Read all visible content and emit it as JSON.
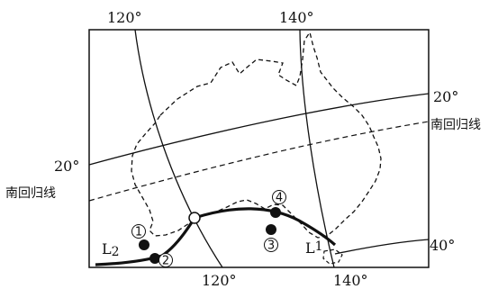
{
  "map": {
    "longitude_labels": {
      "top_left": "120°",
      "top_right": "140°",
      "bottom_left": "120°",
      "bottom_right": "140°"
    },
    "latitude_labels": {
      "right_upper": "20°",
      "left_middle": "20°",
      "right_lower": "40°"
    },
    "tropic_label_right": "南回归线",
    "tropic_label_left": "南回归线",
    "fronts": {
      "l1": {
        "letter": "L",
        "sub": "1"
      },
      "l2": {
        "letter": "L",
        "sub": "2"
      }
    },
    "points": [
      "①",
      "②",
      "③",
      "④"
    ]
  }
}
